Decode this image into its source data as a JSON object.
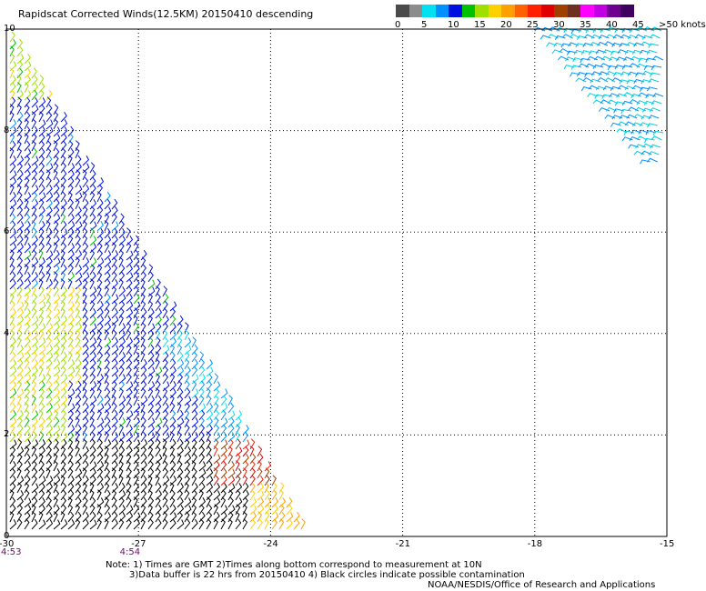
{
  "title": "Rapidscat Corrected Winds(12.5KM) 20150410 descending",
  "colorbar": {
    "labels": [
      "0",
      "5",
      "10",
      "15",
      "20",
      "25",
      "30",
      "35",
      "40",
      "45",
      ">50 knots"
    ],
    "colors": [
      "#4a4a4a",
      "#8c8c8c",
      "#00e0f0",
      "#0090ff",
      "#0010e0",
      "#00c000",
      "#a0e000",
      "#ffd000",
      "#ffa000",
      "#ff6000",
      "#ff2000",
      "#e00000",
      "#a04000",
      "#703020",
      "#ff00ff",
      "#c000e0",
      "#700090",
      "#400060"
    ]
  },
  "map": {
    "lon_range": [
      -30,
      -15
    ],
    "lat_range": [
      0,
      10
    ],
    "x_ticks": [
      "-30",
      "-27",
      "-24",
      "-21",
      "-18",
      "-15"
    ],
    "y_ticks": [
      "0",
      "2",
      "4",
      "6",
      "8",
      "10"
    ],
    "times": [
      {
        "label": "4:53",
        "lon": -30
      },
      {
        "label": "4:54",
        "lon": -27.3
      }
    ]
  },
  "notes": {
    "line1": "Note: 1) Times are GMT 2)Times along bottom correspond to measurement at 10N",
    "line2": "3)Data buffer is 22 hrs from 20150410 4) Black circles indicate possible contamination",
    "line3": "NOAA/NESDIS/Office of Research and Applications"
  }
}
